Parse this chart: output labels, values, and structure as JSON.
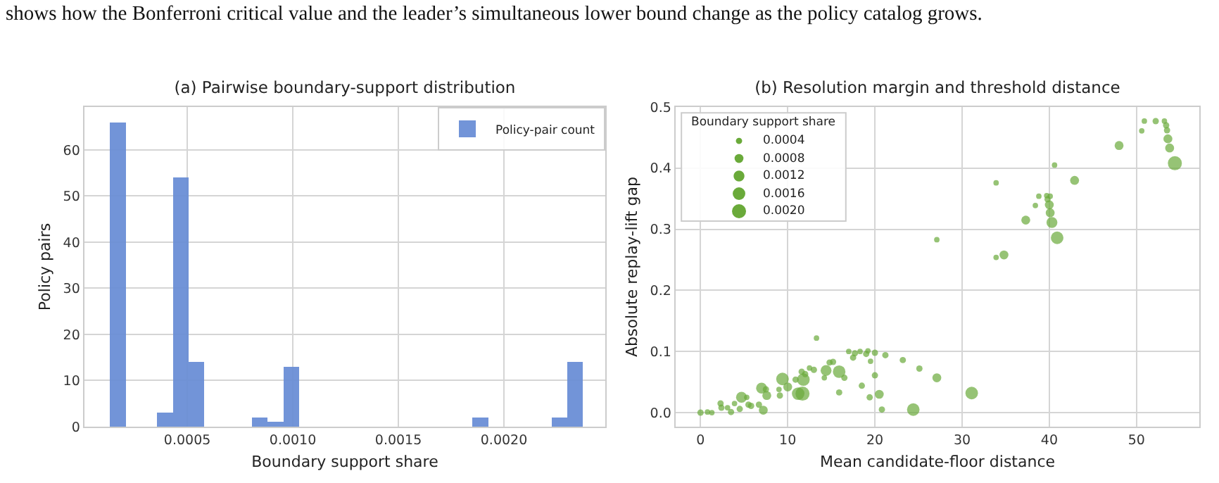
{
  "chart_data": [
    {
      "type": "histogram",
      "title": "(a) Pairwise boundary-support distribution",
      "xlabel": "Boundary support share",
      "ylabel": "Policy pairs",
      "annotations": [
        "shows how the Bonferroni critical value and the leader’s simultaneous lower bound change as the policy catalog grows."
      ],
      "bins": [
        0.000133,
        0.000208,
        0.000282,
        0.000357,
        0.000432,
        0.000507,
        0.000581,
        0.000656,
        0.000731,
        0.000805,
        0.00088,
        0.000955,
        0.001029,
        0.001104,
        0.001179,
        0.001254,
        0.001328,
        0.001403,
        0.001478,
        0.001552,
        0.001627,
        0.001702,
        0.001776,
        0.001851,
        0.001926,
        0.002001,
        0.002075,
        0.00215,
        0.002225,
        0.002299,
        0.002374
      ],
      "series": [
        {
          "name": "Policy-pair count",
          "color": "#6b8fd6",
          "values": [
            66,
            0,
            0,
            3,
            54,
            14,
            0,
            0,
            0,
            2,
            1,
            13,
            0,
            0,
            0,
            0,
            0,
            0,
            0,
            0,
            0,
            0,
            0,
            2,
            0,
            0,
            0,
            0,
            2,
            14
          ]
        }
      ],
      "xlim": [
        1.3e-05,
        0.00248
      ],
      "xticks": [
        0.0005,
        {
          "value": 0.001,
          "label": "0.0010"
        },
        0.0015,
        {
          "value": 0.002,
          "label": "0.0020"
        }
      ],
      "ylim": [
        0,
        69.3
      ],
      "yticks": [
        0,
        10,
        20,
        30,
        40,
        50,
        60
      ],
      "grid": true,
      "legend": "top right"
    },
    {
      "type": "bubble",
      "title": "(b) Resolution margin and threshold distance",
      "xlabel": "Mean candidate-floor distance",
      "ylabel": "Absolute replay-lift gap",
      "legend_title": "Boundary support share",
      "color": "#6aaa3a",
      "x": [
        50.9,
        52.2,
        53.2,
        53.4,
        53.5,
        53.6,
        53.8,
        54.4,
        50.6,
        48.0,
        40.6,
        42.9,
        33.9,
        38.8,
        39.7,
        40.1,
        39.8,
        40.0,
        38.4,
        40.1,
        37.3,
        40.3,
        40.9,
        27.1,
        34.8,
        33.9,
        0.0,
        0.8,
        1.3,
        2.3,
        2.4,
        3.1,
        3.5,
        3.9,
        4.5,
        4.7,
        5.3,
        5.5,
        5.8,
        6.7,
        7.0,
        7.2,
        7.5,
        7.6,
        9.0,
        9.1,
        9.4,
        10.0,
        10.9,
        11.2,
        11.7,
        11.8,
        11.6,
        12.0,
        12.5,
        13.0,
        13.3,
        14.2,
        14.4,
        14.8,
        15.2,
        15.9,
        16.5,
        15.9,
        17.0,
        17.5,
        17.7,
        18.3,
        19.0,
        19.2,
        19.5,
        20.0,
        18.5,
        20.0,
        19.4,
        20.5,
        20.8,
        21.2,
        23.2,
        25.1,
        27.1,
        24.4,
        31.1
      ],
      "values": [
        0.477,
        0.477,
        0.477,
        0.47,
        0.462,
        0.448,
        0.433,
        0.408,
        0.461,
        0.437,
        0.405,
        0.38,
        0.376,
        0.354,
        0.355,
        0.354,
        0.349,
        0.34,
        0.339,
        0.327,
        0.315,
        0.311,
        0.286,
        0.283,
        0.258,
        0.254,
        0.0,
        0.001,
        0.0,
        0.015,
        0.008,
        0.008,
        0.001,
        0.015,
        0.006,
        0.025,
        0.025,
        0.013,
        0.011,
        0.013,
        0.04,
        0.004,
        0.038,
        0.028,
        0.038,
        0.028,
        0.055,
        0.042,
        0.054,
        0.031,
        0.031,
        0.054,
        0.067,
        0.063,
        0.073,
        0.07,
        0.122,
        0.057,
        0.069,
        0.082,
        0.083,
        0.067,
        0.057,
        0.033,
        0.1,
        0.09,
        0.097,
        0.1,
        0.096,
        0.101,
        0.084,
        0.098,
        0.044,
        0.061,
        0.025,
        0.03,
        0.005,
        0.094,
        0.086,
        0.072,
        0.057,
        0.005,
        0.032
      ],
      "sizes": [
        0.0003,
        0.0004,
        0.0003,
        0.0004,
        0.0004,
        0.0008,
        0.0008,
        0.002,
        0.0003,
        0.0008,
        0.0003,
        0.0008,
        0.0003,
        0.0003,
        0.0003,
        0.0003,
        0.0004,
        0.0008,
        0.0003,
        0.0008,
        0.0008,
        0.0012,
        0.0016,
        0.0003,
        0.0008,
        0.0003,
        0.0004,
        0.0003,
        0.0003,
        0.0004,
        0.0004,
        0.0003,
        0.0004,
        0.0003,
        0.0004,
        0.0012,
        0.0003,
        0.0004,
        0.0004,
        0.0004,
        0.0012,
        0.0008,
        0.0004,
        0.0008,
        0.0003,
        0.0004,
        0.0016,
        0.0008,
        0.0004,
        0.0016,
        0.002,
        0.0016,
        0.0004,
        0.0004,
        0.0003,
        0.0004,
        0.0003,
        0.0003,
        0.0012,
        0.0004,
        0.0004,
        0.0016,
        0.0004,
        0.0004,
        0.0003,
        0.0004,
        0.0004,
        0.0003,
        0.0004,
        0.0003,
        0.0003,
        0.0004,
        0.0004,
        0.0004,
        0.0004,
        0.0008,
        0.0004,
        0.0004,
        0.0004,
        0.0004,
        0.0008,
        0.0016,
        0.0016
      ],
      "size_legend": [
        0.0004,
        0.0008,
        0.0012,
        0.0016,
        {
          "value": 0.002,
          "label": "0.0020"
        }
      ],
      "xlim": [
        -2.85,
        57.2
      ],
      "xticks": [
        0,
        10,
        20,
        30,
        40,
        50
      ],
      "ylim": [
        -0.023,
        0.5
      ],
      "yticks": [
        {
          "value": 0,
          "label": "0.0"
        },
        0.1,
        0.2,
        0.3,
        0.4,
        0.5
      ],
      "grid": true
    }
  ]
}
